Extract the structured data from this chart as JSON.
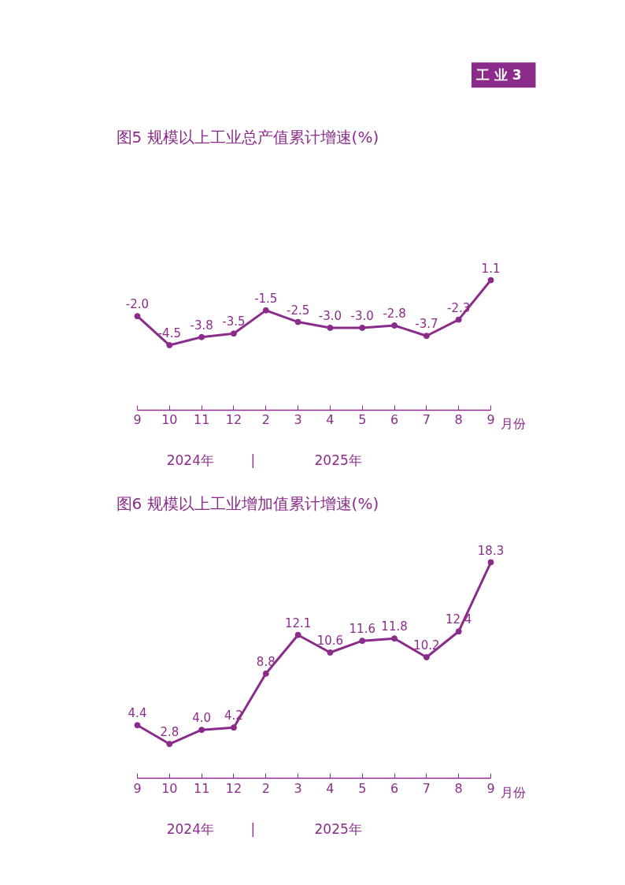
{
  "chart_data": [
    {
      "type": "line",
      "title": "图5  规模以上工业总产值累计增速(%)",
      "xlabel": "月份",
      "categories": [
        "9",
        "10",
        "11",
        "12",
        "2",
        "3",
        "4",
        "5",
        "6",
        "7",
        "8",
        "9"
      ],
      "series": [
        {
          "color": "#8b2c8b",
          "values": [
            -2.0,
            -4.5,
            -3.8,
            -3.5,
            -1.5,
            -2.5,
            -3.0,
            -3.0,
            -2.8,
            -3.7,
            -2.3,
            1.1
          ],
          "value_labels": [
            "-2.0",
            "-4.5",
            "-3.8",
            "-3.5",
            "-1.5",
            "-2.5",
            "-3.0",
            "-3.0",
            "-2.8",
            "-3.7",
            "-2.3",
            "1.1"
          ]
        }
      ],
      "marker": "circle",
      "grid": false,
      "annotations": [
        "工  业  3",
        "2024年",
        "|",
        "2025年"
      ]
    },
    {
      "type": "line",
      "title": "图6  规模以上工业增加值累计增速(%)",
      "xlabel": "月份",
      "categories": [
        "9",
        "10",
        "11",
        "12",
        "2",
        "3",
        "4",
        "5",
        "6",
        "7",
        "8",
        "9"
      ],
      "series": [
        {
          "color": "#8b2c8b",
          "values": [
            4.4,
            2.8,
            4.0,
            4.2,
            8.8,
            12.1,
            10.6,
            11.6,
            11.8,
            10.2,
            12.4,
            18.3
          ],
          "value_labels": [
            "4.4",
            "2.8",
            "4.0",
            "4.2",
            "8.8",
            "12.1",
            "10.6",
            "11.6",
            "11.8",
            "10.2",
            "12.4",
            "18.3"
          ]
        }
      ],
      "marker": "circle",
      "grid": false,
      "annotations": [
        "2024年",
        "|",
        "2025年"
      ]
    }
  ]
}
